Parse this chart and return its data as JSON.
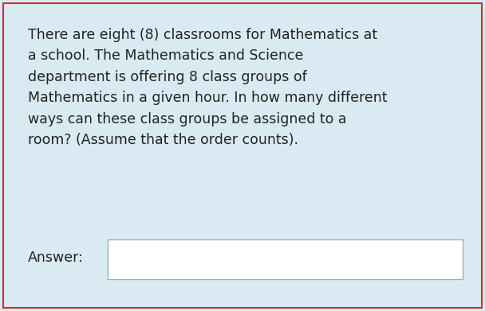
{
  "background_color": "#daeaf3",
  "border_color": "#c0392b",
  "border_linewidth": 1.5,
  "text_color": "#222222",
  "question_text": "There are eight (8) classrooms for Mathematics at\na school. The Mathematics and Science\ndepartment is offering 8 class groups of\nMathematics in a given hour. In how many different\nways can these class groups be assigned to a\nroom? (Assume that the order counts).",
  "answer_label": "Answer:",
  "answer_box_color": "#ffffff",
  "answer_box_border": "#aaaaaa",
  "font_size": 12.5,
  "answer_font_size": 12.5,
  "fig_width": 6.08,
  "fig_height": 3.91,
  "dpi": 100
}
